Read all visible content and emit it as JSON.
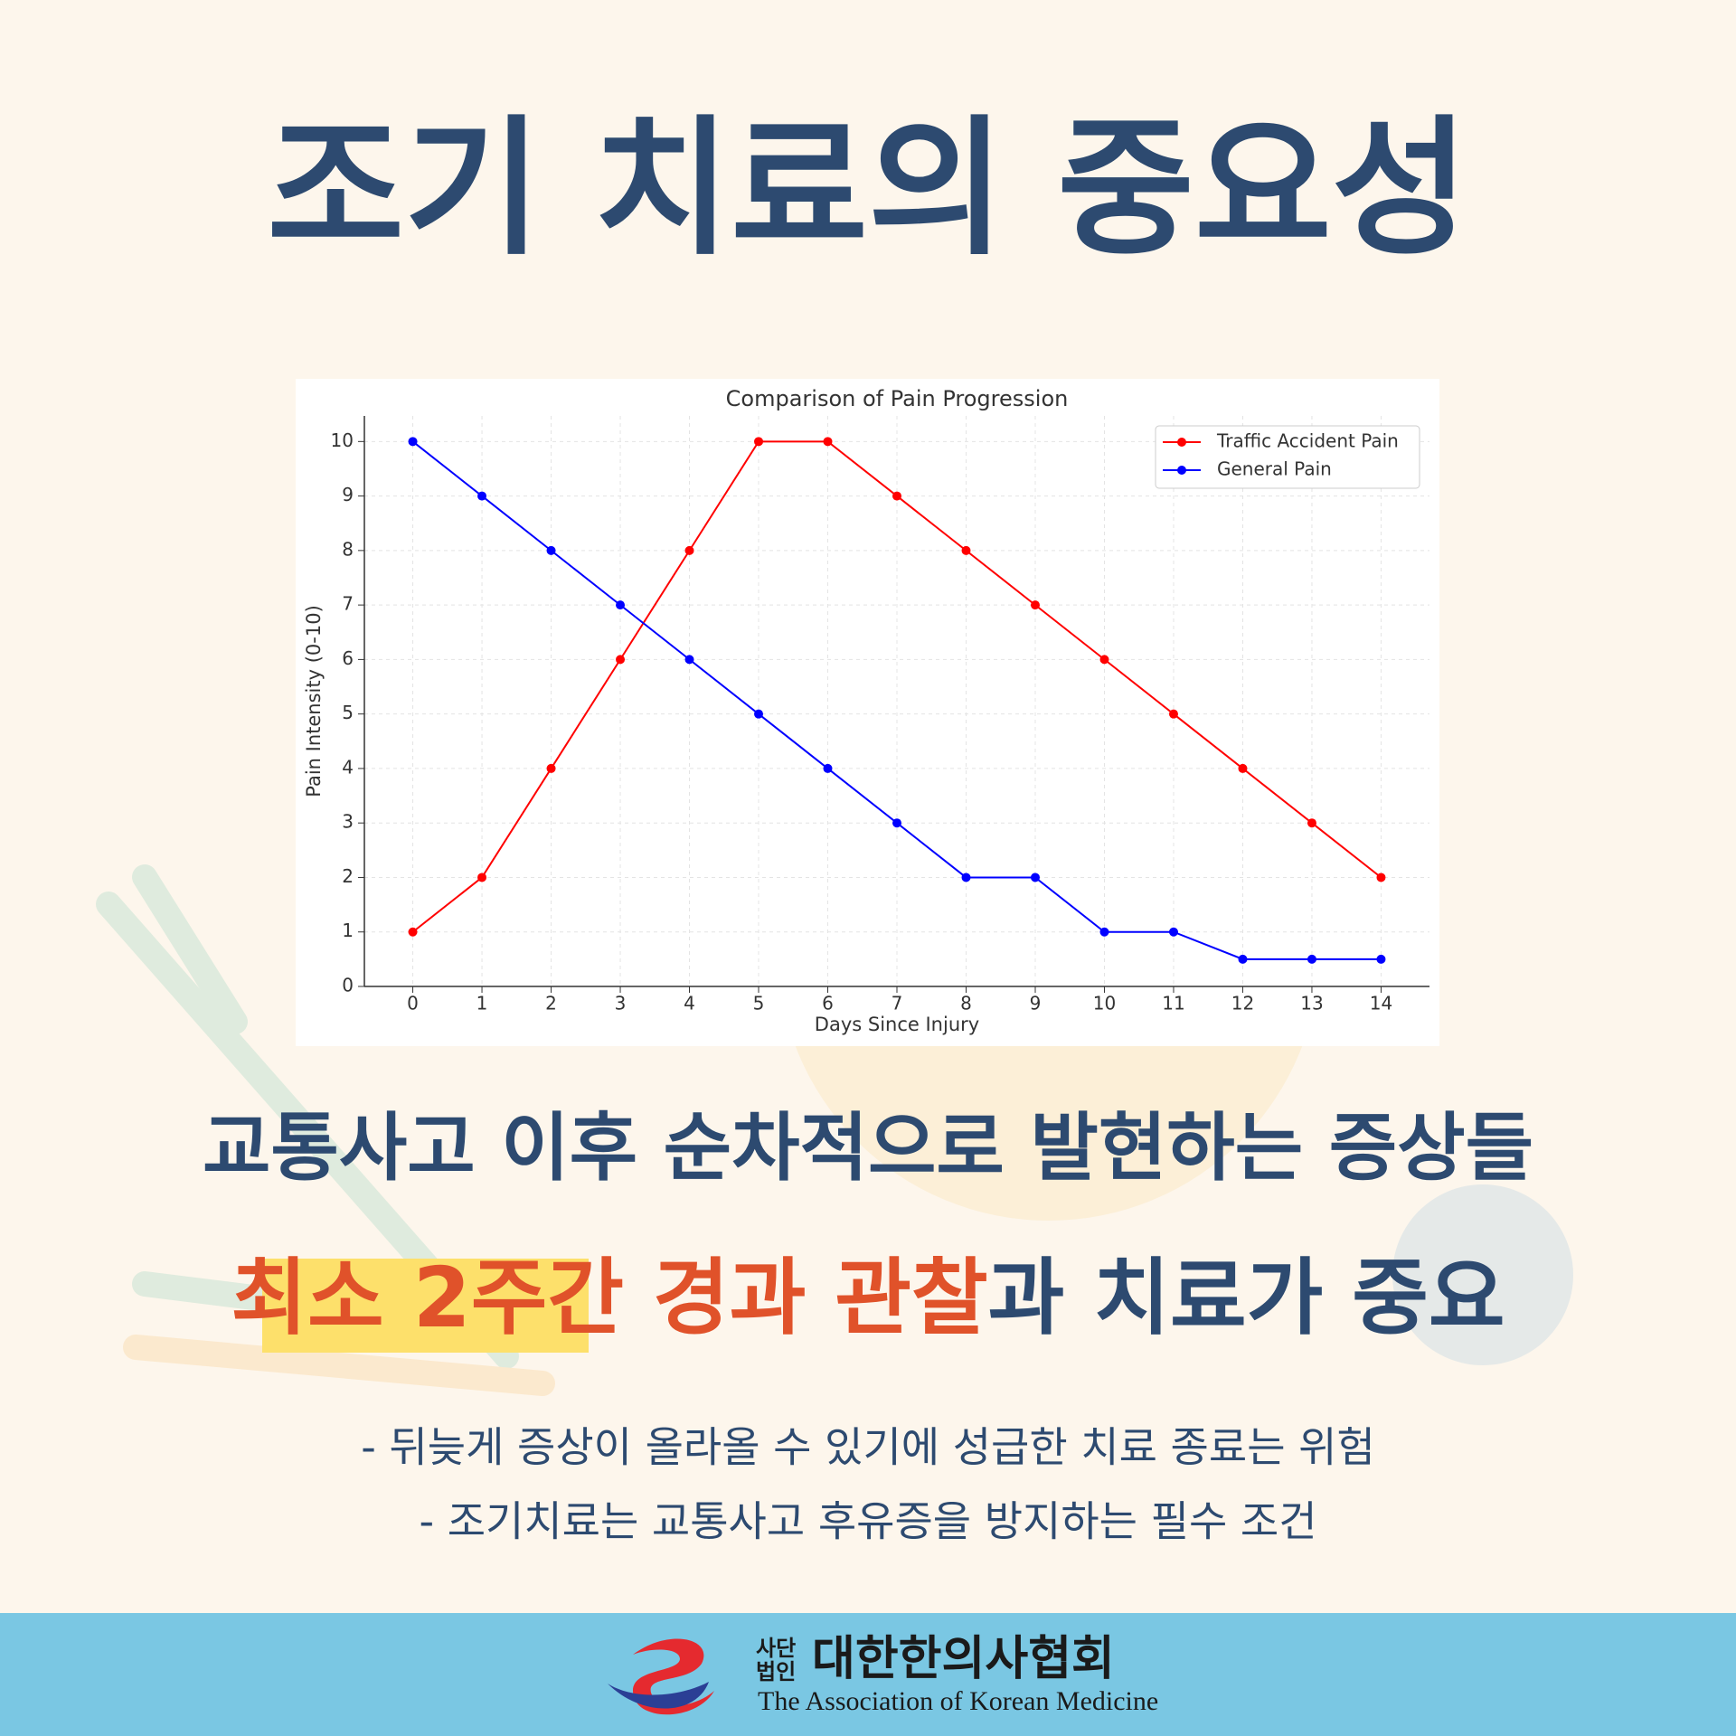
{
  "header": {
    "title": "조기 치료의 중요성"
  },
  "chart_data": {
    "type": "line",
    "title": "Comparison of Pain Progression",
    "x_label": "Days Since Injury",
    "y_label": "Pain Intensity (0-10)",
    "x": [
      0,
      1,
      2,
      3,
      4,
      5,
      6,
      7,
      8,
      9,
      10,
      11,
      12,
      13,
      14
    ],
    "series": [
      {
        "name": "Traffic Accident Pain",
        "color": "#ff0000",
        "values": [
          1,
          2,
          4,
          6,
          8,
          10,
          10,
          9,
          8,
          7,
          6,
          5,
          4,
          3,
          2
        ]
      },
      {
        "name": "General Pain",
        "color": "#0000ff",
        "values": [
          10,
          9,
          8,
          7,
          6,
          5,
          4,
          3,
          2,
          2,
          1,
          1,
          0.5,
          0.5,
          0.5
        ]
      }
    ],
    "xlim": [
      -0.7,
      14.7
    ],
    "ylim": [
      0,
      10.47
    ],
    "xticks": [
      0,
      1,
      2,
      3,
      4,
      5,
      6,
      7,
      8,
      9,
      10,
      11,
      12,
      13,
      14
    ],
    "yticks": [
      0,
      1,
      2,
      3,
      4,
      5,
      6,
      7,
      8,
      9,
      10
    ],
    "grid": true,
    "legend": "upper-right"
  },
  "message": {
    "line1": "교통사고 이후 순차적으로 발현하는 증상들",
    "line2": [
      {
        "text": "최소 2주간 경과 관찰",
        "color": "#e0522a"
      },
      {
        "text": "과 치료가 중요",
        "color": "#2d4a70"
      }
    ]
  },
  "bullets": [
    "- 뒤늦게 증상이 올라올 수 있기에 성급한 치료 종료는 위험",
    "- 조기치료는 교통사고 후유증을 방지하는 필수 조건"
  ],
  "footer": {
    "org_type_top": "사단",
    "org_type_bottom": "법인",
    "org_name": "대한한의사협회",
    "org_name_en": "The Association of Korean Medicine"
  }
}
